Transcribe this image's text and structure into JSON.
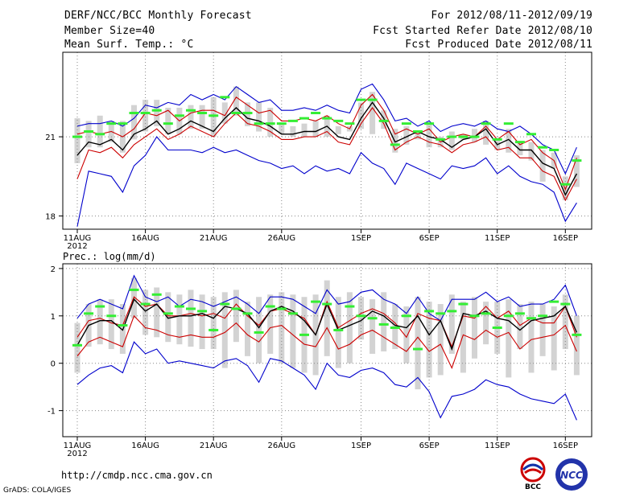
{
  "header": {
    "title": "DERF/NCC/BCC Monthly Forecast",
    "member_size": "Member Size=40",
    "variable": "Mean Surf. Temp.: °C",
    "period": "For 2012/08/11-2012/09/19",
    "started": "Fcst Started Refer Date 2012/08/10",
    "produced": "Fcst Produced Date 2012/08/11"
  },
  "footer": {
    "url": "http://cmdp.ncc.cma.gov.cn",
    "grads": "GrADS: COLA/IGES",
    "logo_bcc": "BCC",
    "logo_ncc": "NCC"
  },
  "colors": {
    "max_min": "#0000cc",
    "spread": "#cc0000",
    "mean": "#000000",
    "marker": "#33ee33",
    "box": "#d3d3d3",
    "grid": "#888888"
  },
  "chart_data": [
    {
      "type": "line",
      "title": "Mean Surf. Temp.: °C",
      "x_labels": [
        "11AUG",
        "16AUG",
        "21AUG",
        "26AUG",
        "1SEP",
        "6SEP",
        "11SEP",
        "16SEP"
      ],
      "x_year": "2012",
      "ylim": [
        17.5,
        24.2
      ],
      "yticks": [
        "18",
        "21"
      ],
      "ytick_values": [
        18,
        21
      ],
      "series": [
        {
          "name": "max",
          "values": [
            21.4,
            21.5,
            21.5,
            21.6,
            21.4,
            21.7,
            22.2,
            22.1,
            22.3,
            22.2,
            22.6,
            22.4,
            22.6,
            22.4,
            22.9,
            22.6,
            22.3,
            22.4,
            22.0,
            22.0,
            22.1,
            22.0,
            22.2,
            22.0,
            21.9,
            22.8,
            23.0,
            22.4,
            21.6,
            21.7,
            21.4,
            21.6,
            21.2,
            21.4,
            21.5,
            21.4,
            21.6,
            21.3,
            21.2,
            21.4,
            21.1,
            20.7,
            20.5,
            19.6,
            20.6
          ]
        },
        {
          "name": "upper",
          "values": [
            21.1,
            21.2,
            21.1,
            21.2,
            21.0,
            21.3,
            21.9,
            21.8,
            22.0,
            21.6,
            21.9,
            22.0,
            22.0,
            21.8,
            22.5,
            22.2,
            21.9,
            22.0,
            21.6,
            21.6,
            21.7,
            21.6,
            21.8,
            21.5,
            21.3,
            22.2,
            22.6,
            22.0,
            21.1,
            21.3,
            21.1,
            21.3,
            20.8,
            21.0,
            21.1,
            21.0,
            21.4,
            20.9,
            21.2,
            20.7,
            20.9,
            20.4,
            20.1,
            19.0,
            20.2
          ]
        },
        {
          "name": "mean",
          "values": [
            20.3,
            20.8,
            20.7,
            20.9,
            20.5,
            21.1,
            21.3,
            21.6,
            21.1,
            21.3,
            21.6,
            21.4,
            21.2,
            21.7,
            22.1,
            21.7,
            21.6,
            21.4,
            21.1,
            21.1,
            21.2,
            21.2,
            21.4,
            21.0,
            20.9,
            21.7,
            22.3,
            21.7,
            20.8,
            21.0,
            21.2,
            21.0,
            20.9,
            20.6,
            20.9,
            21.0,
            21.3,
            20.7,
            20.9,
            20.5,
            20.5,
            20.0,
            19.8,
            18.8,
            19.6
          ]
        },
        {
          "name": "lower",
          "values": [
            19.4,
            20.5,
            20.4,
            20.6,
            20.2,
            20.7,
            21.0,
            21.3,
            20.9,
            21.1,
            21.4,
            21.2,
            21.0,
            21.5,
            21.9,
            21.5,
            21.4,
            21.2,
            20.9,
            20.9,
            21.0,
            21.0,
            21.2,
            20.8,
            20.7,
            21.5,
            22.1,
            21.5,
            20.5,
            20.8,
            21.0,
            20.8,
            20.7,
            20.4,
            20.7,
            20.8,
            21.0,
            20.5,
            20.6,
            20.2,
            20.2,
            19.7,
            19.5,
            18.6,
            19.4
          ]
        },
        {
          "name": "min",
          "values": [
            17.6,
            19.7,
            19.6,
            19.5,
            18.9,
            19.9,
            20.3,
            21.0,
            20.5,
            20.5,
            20.5,
            20.4,
            20.6,
            20.4,
            20.5,
            20.3,
            20.1,
            20.0,
            19.8,
            19.9,
            19.6,
            19.9,
            19.7,
            19.8,
            19.6,
            20.4,
            20.0,
            19.8,
            19.2,
            20.0,
            19.8,
            19.6,
            19.4,
            19.9,
            19.8,
            19.9,
            20.2,
            19.6,
            19.9,
            19.5,
            19.3,
            19.2,
            18.9,
            17.8,
            18.5
          ]
        }
      ],
      "forecast_markers": [
        21.0,
        21.2,
        21.1,
        21.5,
        21.5,
        21.9,
        21.9,
        22.0,
        21.5,
        21.8,
        22.0,
        21.9,
        21.8,
        22.5,
        21.9,
        21.9,
        21.5,
        21.5,
        21.5,
        21.6,
        21.7,
        21.9,
        21.7,
        21.6,
        21.5,
        22.4,
        22.4,
        21.6,
        20.7,
        21.5,
        21.2,
        21.5,
        20.9,
        21.0,
        21.0,
        21.0,
        21.5,
        20.9,
        21.5,
        20.8,
        21.1,
        20.6,
        20.5,
        19.2,
        20.1
      ],
      "box_low": [
        20.0,
        20.6,
        20.6,
        20.8,
        20.4,
        20.9,
        21.2,
        21.4,
        21.1,
        21.1,
        21.3,
        21.3,
        21.0,
        21.5,
        21.8,
        21.4,
        21.2,
        21.0,
        21.1,
        21.0,
        21.0,
        21.0,
        21.0,
        21.1,
        21.2,
        21.3,
        21.1,
        21.3,
        20.4,
        20.7,
        20.9,
        20.6,
        20.6,
        20.5,
        20.9,
        20.8,
        20.7,
        20.5,
        20.4,
        20.3,
        20.1,
        19.3,
        19.8,
        18.6,
        19.1
      ],
      "box_high": [
        21.7,
        21.6,
        21.8,
        21.6,
        21.6,
        22.2,
        22.4,
        22.4,
        22.1,
        22.1,
        22.2,
        22.2,
        22.5,
        22.3,
        22.9,
        22.3,
        22.3,
        22.1,
        21.5,
        21.4,
        21.5,
        21.6,
        21.8,
        21.4,
        21.4,
        22.3,
        22.7,
        22.0,
        21.3,
        21.4,
        21.2,
        21.5,
        21.0,
        21.2,
        21.1,
        21.3,
        21.6,
        20.9,
        21.3,
        20.8,
        20.8,
        20.5,
        20.4,
        19.5,
        20.3
      ]
    },
    {
      "type": "line",
      "title": "Prec.: log(mm/d)",
      "x_labels": [
        "11AUG",
        "16AUG",
        "21AUG",
        "26AUG",
        "1SEP",
        "6SEP",
        "11SEP",
        "16SEP"
      ],
      "x_year": "2012",
      "ylim": [
        -1.55,
        2.1
      ],
      "yticks": [
        "2",
        "1",
        "0",
        "-1"
      ],
      "ytick_values": [
        2,
        1,
        0,
        -1
      ],
      "series": [
        {
          "name": "max",
          "values": [
            0.95,
            1.25,
            1.35,
            1.25,
            1.15,
            1.85,
            1.4,
            1.3,
            1.4,
            1.2,
            1.35,
            1.3,
            1.2,
            1.3,
            1.4,
            1.25,
            1.05,
            1.4,
            1.4,
            1.35,
            1.2,
            1.05,
            1.55,
            1.25,
            1.3,
            1.5,
            1.55,
            1.35,
            1.25,
            1.05,
            1.4,
            1.05,
            0.9,
            1.35,
            1.35,
            1.35,
            1.5,
            1.3,
            1.4,
            1.2,
            1.25,
            1.25,
            1.35,
            1.65,
            1.0
          ]
        },
        {
          "name": "upper",
          "values": [
            0.55,
            0.9,
            0.95,
            0.85,
            0.8,
            1.4,
            1.2,
            1.25,
            1.0,
            1.0,
            1.05,
            1.0,
            1.05,
            0.95,
            1.25,
            1.0,
            0.8,
            1.1,
            1.15,
            1.05,
            0.95,
            0.6,
            1.3,
            0.75,
            0.9,
            1.05,
            1.15,
            1.05,
            0.85,
            0.55,
            1.05,
            0.95,
            0.9,
            0.35,
            1.0,
            0.95,
            1.2,
            0.95,
            1.1,
            0.8,
            0.95,
            0.85,
            0.85,
            1.2,
            0.55
          ]
        },
        {
          "name": "mean",
          "values": [
            0.38,
            0.8,
            0.9,
            0.9,
            0.7,
            1.35,
            1.1,
            1.25,
            0.95,
            1.0,
            1.0,
            1.05,
            0.95,
            1.2,
            1.15,
            1.05,
            0.75,
            1.1,
            1.2,
            1.1,
            0.9,
            0.6,
            1.25,
            0.7,
            0.8,
            0.9,
            1.1,
            1.0,
            0.8,
            0.75,
            1.0,
            0.6,
            0.9,
            0.3,
            1.05,
            1.0,
            1.1,
            0.95,
            0.9,
            0.7,
            0.9,
            0.95,
            1.0,
            1.2,
            0.65
          ]
        },
        {
          "name": "lower",
          "values": [
            0.15,
            0.45,
            0.55,
            0.45,
            0.35,
            1.0,
            0.75,
            0.7,
            0.6,
            0.55,
            0.6,
            0.55,
            0.55,
            0.65,
            0.85,
            0.6,
            0.45,
            0.75,
            0.8,
            0.6,
            0.4,
            0.35,
            0.75,
            0.3,
            0.4,
            0.6,
            0.7,
            0.55,
            0.4,
            0.25,
            0.55,
            0.25,
            0.4,
            -0.1,
            0.6,
            0.5,
            0.7,
            0.55,
            0.65,
            0.3,
            0.5,
            0.55,
            0.6,
            0.8,
            0.25
          ]
        },
        {
          "name": "min",
          "values": [
            -0.45,
            -0.25,
            -0.1,
            -0.05,
            -0.2,
            0.45,
            0.2,
            0.3,
            0.0,
            0.05,
            0.0,
            -0.05,
            -0.1,
            0.05,
            0.1,
            -0.05,
            -0.4,
            0.1,
            0.05,
            -0.1,
            -0.25,
            -0.55,
            0.0,
            -0.25,
            -0.3,
            -0.15,
            -0.1,
            -0.2,
            -0.45,
            -0.5,
            -0.3,
            -0.6,
            -1.15,
            -0.7,
            -0.65,
            -0.55,
            -0.35,
            -0.45,
            -0.5,
            -0.65,
            -0.75,
            -0.8,
            -0.85,
            -0.65,
            -1.2
          ]
        }
      ],
      "forecast_markers": [
        0.38,
        1.05,
        1.2,
        1.0,
        0.8,
        1.55,
        1.25,
        1.45,
        1.05,
        1.2,
        1.15,
        1.1,
        0.7,
        1.25,
        1.15,
        1.05,
        0.65,
        1.2,
        1.15,
        1.05,
        0.6,
        1.3,
        1.25,
        0.7,
        1.2,
        1.0,
        0.95,
        0.82,
        0.75,
        1.0,
        0.3,
        1.1,
        1.05,
        1.1,
        1.25,
        1.0,
        1.05,
        0.75,
        1.0,
        1.05,
        0.95,
        1.0,
        1.3,
        1.25,
        0.6
      ],
      "box_low": [
        -0.2,
        0.35,
        0.4,
        0.3,
        0.2,
        0.95,
        0.6,
        0.55,
        0.45,
        0.4,
        0.35,
        0.3,
        0.3,
        -0.1,
        0.45,
        0.15,
        0.0,
        0.2,
        0.0,
        -0.1,
        -0.2,
        -0.25,
        0.15,
        -0.1,
        0.0,
        0.5,
        0.2,
        0.25,
        0.3,
        0.0,
        -0.55,
        -0.3,
        -0.25,
        0.2,
        -0.2,
        0.1,
        0.4,
        0.2,
        -0.3,
        0.3,
        -0.2,
        0.15,
        -0.15,
        0.3,
        -0.25
      ],
      "box_high": [
        0.85,
        1.25,
        1.35,
        1.35,
        1.25,
        1.8,
        1.55,
        1.6,
        1.5,
        1.45,
        1.55,
        1.45,
        1.4,
        1.5,
        1.55,
        1.3,
        1.4,
        1.45,
        1.5,
        1.45,
        1.4,
        1.45,
        1.75,
        1.4,
        1.5,
        1.4,
        1.35,
        1.5,
        1.25,
        1.2,
        1.4,
        1.3,
        1.25,
        1.45,
        1.3,
        1.4,
        1.3,
        1.3,
        1.35,
        1.25,
        1.3,
        1.25,
        1.2,
        1.45,
        1.0
      ]
    }
  ]
}
